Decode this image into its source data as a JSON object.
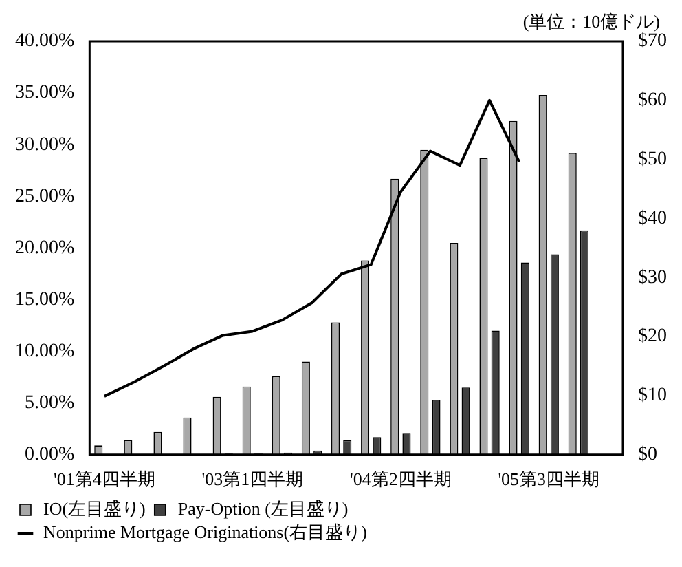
{
  "chart_data": {
    "type": "bar",
    "categories": [
      "'01第4四半期",
      null,
      null,
      null,
      null,
      "'03第1四半期",
      null,
      null,
      null,
      null,
      "'04第2四半期",
      null,
      null,
      null,
      null,
      "'05第3四半期",
      null,
      null
    ],
    "series": [
      {
        "name": "IO(左目盛り)",
        "color": "#a8a8a8",
        "values": [
          0.9,
          1.4,
          2.2,
          3.6,
          5.6,
          6.6,
          7.6,
          9.0,
          12.8,
          18.8,
          26.7,
          29.5,
          20.5,
          28.7,
          32.3,
          34.8,
          29.2,
          null
        ]
      },
      {
        "name": "Pay-Option (左目盛り)",
        "color": "#404040",
        "values": [
          0,
          0,
          0,
          0,
          0.1,
          0.1,
          0.2,
          0.4,
          1.4,
          1.7,
          2.1,
          5.3,
          6.5,
          12.0,
          18.6,
          19.4,
          21.7,
          null
        ]
      },
      {
        "name": "Nonprime Mortgage Originations(右目盛り)",
        "type": "line",
        "axis": "y2",
        "color": "#000000",
        "values": [
          9.9,
          12.3,
          15.0,
          17.9,
          20.2,
          20.9,
          22.8,
          25.7,
          30.6,
          32.2,
          44.5,
          51.4,
          49.0,
          60.0,
          49.6,
          null,
          null,
          null
        ]
      }
    ],
    "ylim": [
      0,
      40
    ],
    "yticks": [
      {
        "value": 0,
        "label": "0.00%"
      },
      {
        "value": 5,
        "label": "5.00%"
      },
      {
        "value": 10,
        "label": "10.00%"
      },
      {
        "value": 15,
        "label": "15.00%"
      },
      {
        "value": 20,
        "label": "20.00%"
      },
      {
        "value": 25,
        "label": "25.00%"
      },
      {
        "value": 30,
        "label": "30.00%"
      },
      {
        "value": 35,
        "label": "35.00%"
      },
      {
        "value": 40,
        "label": "40.00%"
      }
    ],
    "y2lim": [
      0,
      70
    ],
    "y2ticks": [
      {
        "value": 0,
        "label": "$0"
      },
      {
        "value": 10,
        "label": "$10"
      },
      {
        "value": 20,
        "label": "$20"
      },
      {
        "value": 30,
        "label": "$30"
      },
      {
        "value": 40,
        "label": "$40"
      },
      {
        "value": 50,
        "label": "$50"
      },
      {
        "value": 60,
        "label": "$60"
      },
      {
        "value": 70,
        "label": "$70"
      }
    ],
    "annotations": [
      "(単位：10億ドル)"
    ],
    "grid": false,
    "legend": "bottom",
    "marker": "none",
    "line_style": "solid"
  }
}
